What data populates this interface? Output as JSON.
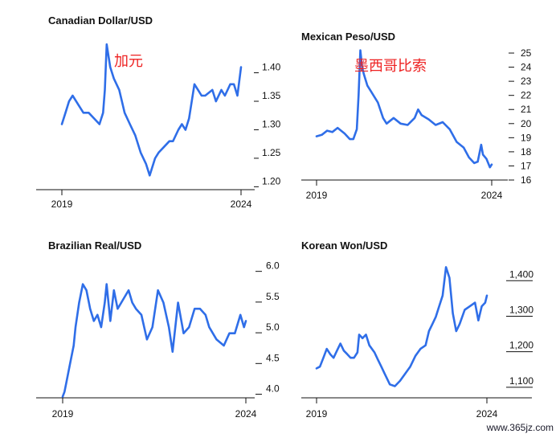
{
  "watermark": "www.365jz.com",
  "colors": {
    "line": "#2f6ee8",
    "annotation": "#ee2222",
    "axis": "#111111",
    "text": "#111111"
  },
  "chart_data": [
    {
      "id": "cad",
      "type": "line",
      "title": "Canadian Dollar/USD",
      "annotation": "加元",
      "x_ticks": [
        "2019",
        "2024"
      ],
      "x_range": [
        2019,
        2024
      ],
      "ylim": [
        1.185,
        1.46
      ],
      "y_ticks": [
        {
          "value": 1.4,
          "label": "1.40"
        },
        {
          "value": 1.35,
          "label": "1.35"
        },
        {
          "value": 1.3,
          "label": "1.30"
        },
        {
          "value": 1.25,
          "label": "1.25"
        },
        {
          "value": 1.2,
          "label": "1.20"
        }
      ],
      "series": [
        {
          "x": [
            2019.0,
            2019.1,
            2019.2,
            2019.3,
            2019.5,
            2019.6,
            2019.75,
            2019.9,
            2020.05,
            2020.15,
            2020.2,
            2020.25,
            2020.3,
            2020.35,
            2020.45,
            2020.6,
            2020.75,
            2020.9,
            2021.05,
            2021.2,
            2021.35,
            2021.45,
            2021.6,
            2021.7,
            2021.85,
            2022.0,
            2022.1,
            2022.25,
            2022.35,
            2022.45,
            2022.55,
            2022.7,
            2022.8,
            2022.9,
            2023.0,
            2023.2,
            2023.3,
            2023.45,
            2023.55,
            2023.7,
            2023.8,
            2023.9,
            2024.0
          ],
          "y": [
            1.3,
            1.32,
            1.34,
            1.35,
            1.33,
            1.32,
            1.32,
            1.31,
            1.3,
            1.32,
            1.36,
            1.44,
            1.42,
            1.4,
            1.38,
            1.36,
            1.32,
            1.3,
            1.28,
            1.25,
            1.23,
            1.21,
            1.24,
            1.25,
            1.26,
            1.27,
            1.27,
            1.29,
            1.3,
            1.29,
            1.31,
            1.37,
            1.36,
            1.35,
            1.35,
            1.36,
            1.34,
            1.36,
            1.35,
            1.37,
            1.37,
            1.35,
            1.4
          ]
        }
      ]
    },
    {
      "id": "mxn",
      "type": "line",
      "title": "Mexican Peso/USD",
      "annotation": "墨西哥比索",
      "x_ticks": [
        "2019",
        "2024"
      ],
      "x_range": [
        2019,
        2024
      ],
      "ylim": [
        16,
        25.4
      ],
      "y_ticks": [
        {
          "value": 25,
          "label": "25"
        },
        {
          "value": 24,
          "label": "24"
        },
        {
          "value": 23,
          "label": "23"
        },
        {
          "value": 22,
          "label": "22"
        },
        {
          "value": 21,
          "label": "21"
        },
        {
          "value": 20,
          "label": "20"
        },
        {
          "value": 19,
          "label": "19"
        },
        {
          "value": 18,
          "label": "18"
        },
        {
          "value": 17,
          "label": "17"
        },
        {
          "value": 16,
          "label": "16"
        }
      ],
      "series": [
        {
          "x": [
            2019.0,
            2019.15,
            2019.3,
            2019.45,
            2019.6,
            2019.8,
            2019.95,
            2020.05,
            2020.15,
            2020.2,
            2020.25,
            2020.3,
            2020.35,
            2020.45,
            2020.55,
            2020.75,
            2020.9,
            2021.0,
            2021.2,
            2021.4,
            2021.6,
            2021.8,
            2021.9,
            2022.0,
            2022.2,
            2022.4,
            2022.6,
            2022.8,
            2023.0,
            2023.2,
            2023.35,
            2023.5,
            2023.6,
            2023.7,
            2023.75,
            2023.85,
            2023.95,
            2024.0
          ],
          "y": [
            19.1,
            19.2,
            19.5,
            19.4,
            19.7,
            19.3,
            18.9,
            18.9,
            19.6,
            22.0,
            25.2,
            24.0,
            23.5,
            22.7,
            22.3,
            21.5,
            20.4,
            20.0,
            20.4,
            20.0,
            19.9,
            20.4,
            21.0,
            20.6,
            20.3,
            19.9,
            20.1,
            19.6,
            18.7,
            18.3,
            17.6,
            17.2,
            17.3,
            18.5,
            17.8,
            17.5,
            16.9,
            17.1
          ]
        }
      ]
    },
    {
      "id": "brl",
      "type": "line",
      "title": "Brazilian Real/USD",
      "annotation": "",
      "x_ticks": [
        "2019",
        "2024"
      ],
      "x_range": [
        2019,
        2024
      ],
      "ylim": [
        3.85,
        6.1
      ],
      "y_ticks": [
        {
          "value": 6.0,
          "label": "6.0"
        },
        {
          "value": 5.5,
          "label": "5.5"
        },
        {
          "value": 5.0,
          "label": "5.0"
        },
        {
          "value": 4.5,
          "label": "4.5"
        },
        {
          "value": 4.0,
          "label": "4.0"
        }
      ],
      "series": [
        {
          "x": [
            2019.0,
            2019.05,
            2019.1,
            2019.2,
            2019.3,
            2019.35,
            2019.45,
            2019.55,
            2019.65,
            2019.75,
            2019.85,
            2019.95,
            2020.05,
            2020.15,
            2020.2,
            2020.3,
            2020.4,
            2020.5,
            2020.6,
            2020.7,
            2020.8,
            2020.9,
            2021.0,
            2021.15,
            2021.3,
            2021.45,
            2021.6,
            2021.75,
            2021.9,
            2022.0,
            2022.15,
            2022.3,
            2022.45,
            2022.6,
            2022.75,
            2022.9,
            2023.0,
            2023.2,
            2023.4,
            2023.55,
            2023.7,
            2023.85,
            2023.95,
            2024.0
          ],
          "y": [
            3.87,
            3.95,
            4.1,
            4.4,
            4.7,
            5.0,
            5.4,
            5.7,
            5.6,
            5.3,
            5.1,
            5.2,
            5.0,
            5.4,
            5.7,
            5.1,
            5.6,
            5.3,
            5.4,
            5.5,
            5.6,
            5.4,
            5.3,
            5.2,
            4.8,
            5.0,
            5.6,
            5.4,
            5.0,
            4.6,
            5.4,
            4.9,
            5.0,
            5.3,
            5.3,
            5.2,
            5.0,
            4.8,
            4.7,
            4.9,
            4.9,
            5.2,
            5.0,
            5.1
          ]
        }
      ]
    },
    {
      "id": "krw",
      "type": "line",
      "title": "Korean Won/USD",
      "annotation": "",
      "x_ticks": [
        "2019",
        "2024"
      ],
      "x_range": [
        2019,
        2024
      ],
      "ylim": [
        1050,
        1430
      ],
      "y_ticks": [
        {
          "value": 1400,
          "label": "1,400"
        },
        {
          "value": 1300,
          "label": "1,300"
        },
        {
          "value": 1200,
          "label": "1,200"
        },
        {
          "value": 1100,
          "label": "1,100"
        }
      ],
      "series": [
        {
          "x": [
            2019.0,
            2019.1,
            2019.2,
            2019.3,
            2019.4,
            2019.5,
            2019.6,
            2019.7,
            2019.8,
            2019.9,
            2020.0,
            2020.1,
            2020.2,
            2020.25,
            2020.35,
            2020.45,
            2020.55,
            2020.7,
            2020.8,
            2020.9,
            2021.0,
            2021.15,
            2021.3,
            2021.45,
            2021.6,
            2021.75,
            2021.9,
            2022.05,
            2022.2,
            2022.3,
            2022.4,
            2022.5,
            2022.6,
            2022.7,
            2022.8,
            2022.9,
            2023.0,
            2023.1,
            2023.2,
            2023.35,
            2023.5,
            2023.65,
            2023.75,
            2023.85,
            2023.95,
            2024.0
          ],
          "y": [
            1135,
            1140,
            1165,
            1190,
            1175,
            1165,
            1185,
            1205,
            1185,
            1175,
            1165,
            1165,
            1180,
            1230,
            1220,
            1230,
            1200,
            1180,
            1160,
            1140,
            1120,
            1090,
            1085,
            1100,
            1120,
            1140,
            1170,
            1190,
            1200,
            1240,
            1260,
            1280,
            1310,
            1340,
            1420,
            1390,
            1290,
            1240,
            1260,
            1300,
            1310,
            1320,
            1270,
            1310,
            1320,
            1340
          ]
        }
      ]
    }
  ]
}
